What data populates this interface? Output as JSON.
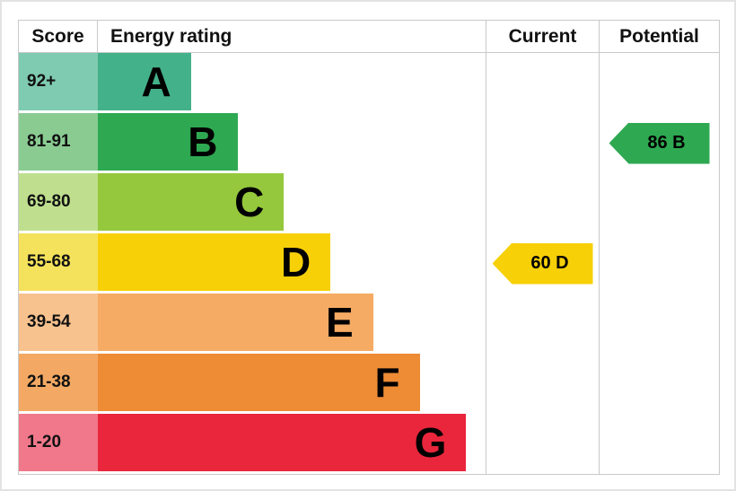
{
  "frame": {
    "background": "#ffffff",
    "border_color": "#e3e3e3",
    "grid_color": "#c9c9c9"
  },
  "header": {
    "score": "Score",
    "energy_rating": "Energy rating",
    "current": "Current",
    "potential": "Potential"
  },
  "chart_data": {
    "type": "bar",
    "title": "Energy rating",
    "categories": [
      "A",
      "B",
      "C",
      "D",
      "E",
      "F",
      "G"
    ],
    "score_ranges": [
      "92+",
      "81-91",
      "69-80",
      "55-68",
      "39-54",
      "21-38",
      "1-20"
    ],
    "bands": [
      {
        "letter": "A",
        "score": "92+",
        "bar_color": "#43b18a",
        "score_color": "#7fcbb1",
        "width_pct": 24
      },
      {
        "letter": "B",
        "score": "81-91",
        "bar_color": "#2ea952",
        "score_color": "#8acb92",
        "width_pct": 36
      },
      {
        "letter": "C",
        "score": "69-80",
        "bar_color": "#95c83c",
        "score_color": "#bfdf8e",
        "width_pct": 48
      },
      {
        "letter": "D",
        "score": "55-68",
        "bar_color": "#f7d008",
        "score_color": "#f4e25c",
        "width_pct": 60
      },
      {
        "letter": "E",
        "score": "39-54",
        "bar_color": "#f5ab63",
        "score_color": "#f7c28e",
        "width_pct": 71
      },
      {
        "letter": "F",
        "score": "21-38",
        "bar_color": "#ee8b35",
        "score_color": "#f3a964",
        "width_pct": 83
      },
      {
        "letter": "G",
        "score": "1-20",
        "bar_color": "#e9263c",
        "score_color": "#f0788a",
        "width_pct": 95
      }
    ],
    "current": {
      "value": 60,
      "band": "D",
      "label": "60 D",
      "color": "#f7d008"
    },
    "potential": {
      "value": 86,
      "band": "B",
      "label": "86 B",
      "color": "#2ea952"
    }
  }
}
